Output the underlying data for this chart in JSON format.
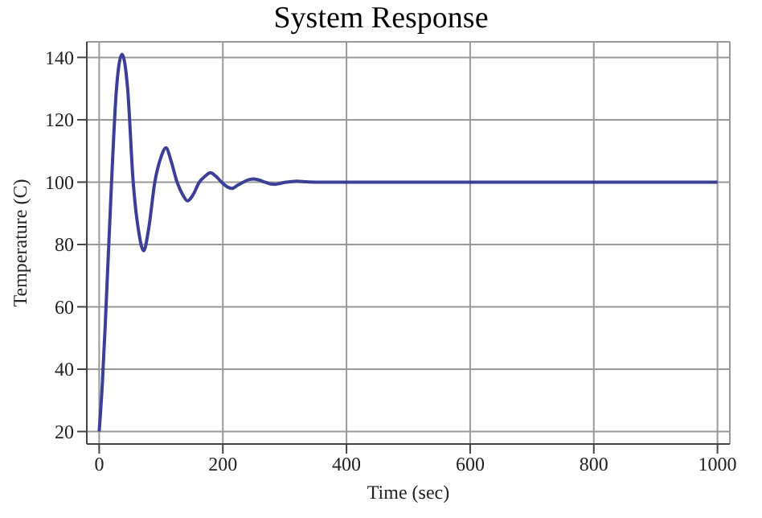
{
  "chart_data": {
    "type": "line",
    "title": "System Response",
    "xlabel": "Time (sec)",
    "ylabel": "Temperature (C)",
    "x": [
      0,
      5,
      10,
      20,
      28,
      37,
      46,
      55,
      64,
      72,
      80,
      90,
      100,
      108,
      116,
      126,
      135,
      143,
      152,
      162,
      172,
      180,
      188,
      198,
      207,
      215,
      224,
      233,
      242,
      250,
      258,
      268,
      278,
      285,
      293,
      302,
      311,
      320,
      335,
      350,
      400,
      500,
      600,
      700,
      800,
      900,
      1000
    ],
    "series": [
      {
        "color": "#3b3f98",
        "values": [
          20,
          35,
          55,
          100,
          130,
          141,
          130,
          100,
          84,
          78,
          85,
          100,
          108,
          111,
          107,
          100,
          96,
          94,
          96,
          100,
          102,
          103,
          102,
          100,
          98.5,
          98,
          99,
          100,
          100.8,
          101,
          100.7,
          100,
          99.4,
          99.3,
          99.6,
          100,
          100.2,
          100.3,
          100.1,
          100,
          100,
          100,
          100,
          100,
          100,
          100,
          100
        ]
      }
    ],
    "xlim": [
      -20,
      1020
    ],
    "ylim": [
      16,
      145
    ],
    "xticks": [
      0,
      200,
      400,
      600,
      800,
      1000
    ],
    "yticks": [
      20,
      40,
      60,
      80,
      100,
      120,
      140
    ],
    "grid": true,
    "legend": false,
    "marker": "none",
    "line_style": "solid"
  }
}
